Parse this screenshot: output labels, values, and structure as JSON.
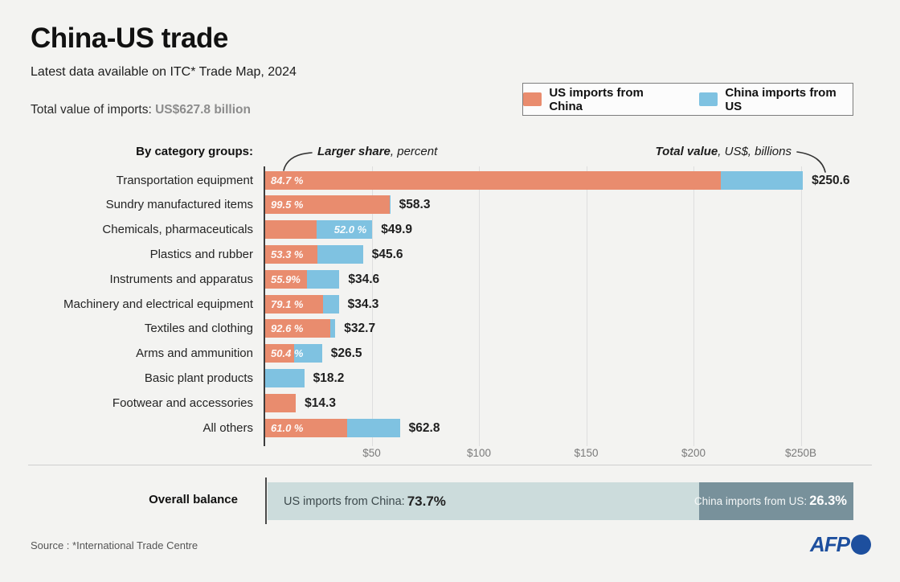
{
  "colors": {
    "background": "#f3f3f1",
    "us_from_china": "#e98c6e",
    "china_from_us": "#7fc2e1",
    "balance_light": "#ccdcdc",
    "balance_dark": "#78919b",
    "afp_blue": "#1d4f9e"
  },
  "header": {
    "title": "China-US trade",
    "subtitle": "Latest data available on ITC* Trade Map, 2024",
    "total_label": "Total value of imports: ",
    "total_value": "US$627.8 billion"
  },
  "legend": {
    "items": [
      {
        "label": "US imports from China",
        "color": "#e98c6e"
      },
      {
        "label": "China imports from US",
        "color": "#7fc2e1"
      }
    ]
  },
  "chart_data": {
    "type": "bar",
    "orientation": "horizontal",
    "stacked": true,
    "group_title": "By category groups:",
    "annotation_left": {
      "bold": "Larger share",
      "rest": ", percent"
    },
    "annotation_right": {
      "bold": "Total value",
      "rest": ", US$, billions"
    },
    "series_names": [
      "US imports from China",
      "China imports from US"
    ],
    "unit": "US$, billions",
    "x_axis": {
      "tick_labels": [
        "$50",
        "$100",
        "$150",
        "$200",
        "$250B"
      ],
      "tick_values": [
        50,
        100,
        150,
        200,
        250
      ],
      "min": 0,
      "max": 255,
      "grid": true
    },
    "rows": [
      {
        "category": "Transportation equipment",
        "total": 250.6,
        "total_label": "$250.6",
        "orange_pct": 84.7,
        "share_label": "84.7 %",
        "label_in": "orange"
      },
      {
        "category": "Sundry manufactured items",
        "total": 58.3,
        "total_label": "$58.3",
        "orange_pct": 99.5,
        "share_label": "99.5 %",
        "label_in": "orange"
      },
      {
        "category": "Chemicals, pharmaceuticals",
        "total": 49.9,
        "total_label": "$49.9",
        "orange_pct": 48.0,
        "share_label": "52.0 %",
        "label_in": "blue"
      },
      {
        "category": "Plastics and rubber",
        "total": 45.6,
        "total_label": "$45.6",
        "orange_pct": 53.3,
        "share_label": "53.3 %",
        "label_in": "orange"
      },
      {
        "category": "Instruments and apparatus",
        "total": 34.6,
        "total_label": "$34.6",
        "orange_pct": 55.9,
        "share_label": "55.9%",
        "label_in": "orange"
      },
      {
        "category": "Machinery and electrical equipment",
        "total": 34.3,
        "total_label": "$34.3",
        "orange_pct": 79.1,
        "share_label": "79.1 %",
        "label_in": "orange"
      },
      {
        "category": "Textiles and clothing",
        "total": 32.7,
        "total_label": "$32.7",
        "orange_pct": 92.6,
        "share_label": "92.6 %",
        "label_in": "orange"
      },
      {
        "category": "Arms and ammunition",
        "total": 26.5,
        "total_label": "$26.5",
        "orange_pct": 50.4,
        "share_label": "50.4 %",
        "label_in": "orange"
      },
      {
        "category": "Basic plant products",
        "total": 18.2,
        "total_label": "$18.2",
        "orange_pct": 0,
        "share_label": "",
        "label_in": "none"
      },
      {
        "category": "Footwear and accessories",
        "total": 14.3,
        "total_label": "$14.3",
        "orange_pct": 100,
        "share_label": "",
        "label_in": "none"
      },
      {
        "category": "All others",
        "total": 62.8,
        "total_label": "$62.8",
        "orange_pct": 61.0,
        "share_label": "61.0 %",
        "label_in": "orange"
      }
    ]
  },
  "balance": {
    "label": "Overall balance",
    "left": {
      "text": "US imports from China:",
      "value": "73.7%",
      "pct": 73.7
    },
    "right": {
      "text": "China imports from US:",
      "value": "26.3%",
      "pct": 26.3
    }
  },
  "footer": {
    "source": "Source : *International Trade Centre",
    "logo_text": "AFP"
  }
}
